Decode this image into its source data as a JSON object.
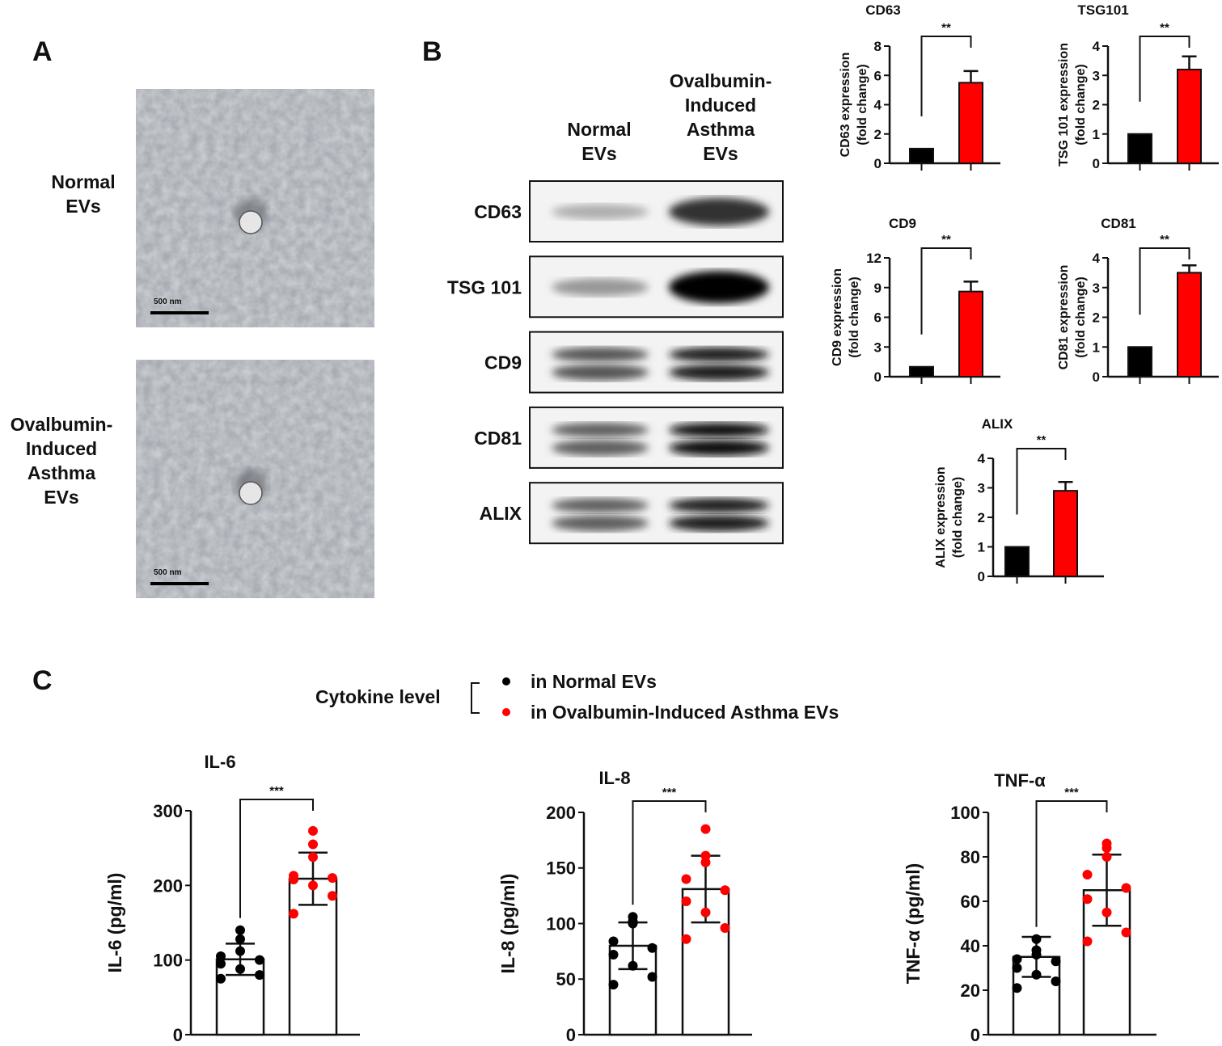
{
  "panels": {
    "a": "A",
    "b": "B",
    "c": "C"
  },
  "panel_a": {
    "rows": [
      {
        "label_lines": [
          "Normal",
          "EVs"
        ],
        "scale_bar": "500 nm"
      },
      {
        "label_lines": [
          "Ovalbumin-",
          "Induced",
          "Asthma",
          "EVs"
        ],
        "scale_bar": "500 nm"
      }
    ]
  },
  "panel_b": {
    "columns": [
      {
        "lines": [
          "Normal",
          "EVs"
        ]
      },
      {
        "lines": [
          "Ovalbumin-",
          "Induced",
          "Asthma",
          "EVs"
        ]
      }
    ],
    "blots": [
      {
        "label": "CD63",
        "normal_intensity": 0.25,
        "asthma_intensity": 0.8,
        "doublet": false
      },
      {
        "label": "TSG 101",
        "normal_intensity": 0.35,
        "asthma_intensity": 1.0,
        "doublet": false
      },
      {
        "label": "CD9",
        "normal_intensity": 0.65,
        "asthma_intensity": 0.9,
        "doublet": true
      },
      {
        "label": "CD81",
        "normal_intensity": 0.6,
        "asthma_intensity": 0.95,
        "doublet": true
      },
      {
        "label": "ALIX",
        "normal_intensity": 0.6,
        "asthma_intensity": 0.9,
        "doublet": true
      }
    ]
  },
  "colors": {
    "normal": "#000000",
    "asthma": "#ff0000"
  },
  "legend": {
    "title": "Cytokine level",
    "items": [
      {
        "label": "in Normal EVs",
        "color": "#000000"
      },
      {
        "label": "in Ovalbumin-Induced Asthma EVs",
        "color": "#ff0000"
      }
    ]
  },
  "chart_data": [
    {
      "type": "bar",
      "title": "CD63",
      "ylabel_lines": [
        "CD63 expression",
        "(fold change)"
      ],
      "ylim": [
        0,
        8
      ],
      "yticks": [
        0,
        2,
        4,
        6,
        8
      ],
      "values": [
        1,
        5.5
      ],
      "errors": [
        0,
        0.8
      ],
      "significance": "**"
    },
    {
      "type": "bar",
      "title": "TSG101",
      "ylabel_lines": [
        "TSG 101 expression",
        "(fold change)"
      ],
      "ylim": [
        0,
        4
      ],
      "yticks": [
        0,
        1,
        2,
        3,
        4
      ],
      "values": [
        1,
        3.2
      ],
      "errors": [
        0,
        0.45
      ],
      "significance": "**"
    },
    {
      "type": "bar",
      "title": "CD9",
      "ylabel_lines": [
        "CD9 expression",
        "(fold change)"
      ],
      "ylim": [
        0,
        12
      ],
      "yticks": [
        0,
        3,
        6,
        9,
        12
      ],
      "values": [
        1,
        8.6
      ],
      "errors": [
        0,
        1.0
      ],
      "significance": "**"
    },
    {
      "type": "bar",
      "title": "CD81",
      "ylabel_lines": [
        "CD81 expression",
        "(fold change)"
      ],
      "ylim": [
        0,
        4
      ],
      "yticks": [
        0,
        1,
        2,
        3,
        4
      ],
      "values": [
        1,
        3.5
      ],
      "errors": [
        0,
        0.25
      ],
      "significance": "**"
    },
    {
      "type": "bar",
      "title": "ALIX",
      "ylabel_lines": [
        "ALIX expression",
        "(fold change)"
      ],
      "ylim": [
        0,
        4
      ],
      "yticks": [
        0,
        1,
        2,
        3,
        4
      ],
      "values": [
        1,
        2.9
      ],
      "errors": [
        0,
        0.3
      ],
      "significance": "**"
    },
    {
      "type": "scatter",
      "title": "IL-6",
      "ylabel": "IL-6 (pg/ml)",
      "ylim": [
        0,
        300
      ],
      "yticks": [
        0,
        100,
        200,
        300
      ],
      "means": [
        101,
        209
      ],
      "sd": [
        21,
        35
      ],
      "significance": "***",
      "points": [
        [
          140,
          128,
          112,
          105,
          100,
          95,
          88,
          80,
          75
        ],
        [
          273,
          255,
          238,
          213,
          210,
          208,
          200,
          186,
          162
        ]
      ]
    },
    {
      "type": "scatter",
      "title": "IL-8",
      "ylabel": "IL-8 (pg/ml)",
      "ylim": [
        0,
        200
      ],
      "yticks": [
        0,
        50,
        100,
        150,
        200
      ],
      "means": [
        80,
        131
      ],
      "sd": [
        21,
        30
      ],
      "significance": "***",
      "points": [
        [
          106,
          102,
          100,
          84,
          78,
          72,
          62,
          52,
          45
        ],
        [
          185,
          161,
          155,
          140,
          130,
          120,
          110,
          96,
          86
        ]
      ]
    },
    {
      "type": "scatter",
      "title": "TNF-α",
      "ylabel": "TNF-α (pg/ml)",
      "ylim": [
        0,
        100
      ],
      "yticks": [
        0,
        20,
        40,
        60,
        80,
        100
      ],
      "means": [
        35,
        65
      ],
      "sd": [
        9,
        16
      ],
      "significance": "***",
      "points": [
        [
          43,
          38,
          36,
          34,
          33,
          30,
          27,
          24,
          21
        ],
        [
          86,
          84,
          80,
          72,
          66,
          61,
          55,
          46,
          42
        ]
      ]
    }
  ]
}
